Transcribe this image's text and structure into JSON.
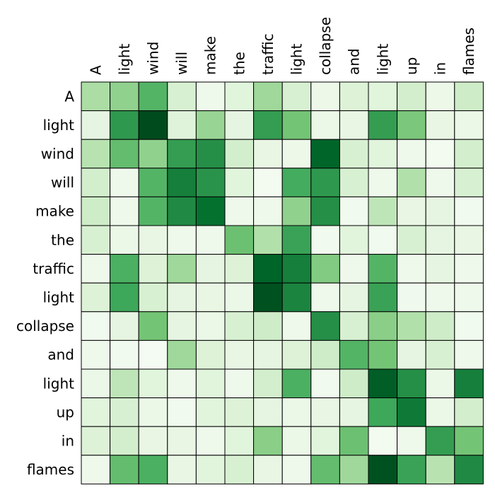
{
  "chart_data": {
    "type": "heatmap",
    "title": "",
    "xlabel": "",
    "ylabel": "",
    "x_categories": [
      "A",
      "light",
      "wind",
      "will",
      "make",
      "the",
      "traffic",
      "light",
      "collapse",
      "and",
      "light",
      "up",
      "in",
      "flames"
    ],
    "y_categories": [
      "A",
      "light",
      "wind",
      "will",
      "make",
      "the",
      "traffic",
      "light",
      "collapse",
      "and",
      "light",
      "up",
      "in",
      "flames"
    ],
    "colormap": "Greens",
    "color_range": [
      0,
      1
    ],
    "colorbar": false,
    "grid": true,
    "values": [
      [
        0.34,
        0.42,
        0.58,
        0.18,
        0.06,
        0.14,
        0.38,
        0.18,
        0.07,
        0.16,
        0.14,
        0.2,
        0.07,
        0.22
      ],
      [
        0.12,
        0.7,
        0.98,
        0.15,
        0.4,
        0.12,
        0.68,
        0.5,
        0.08,
        0.1,
        0.68,
        0.48,
        0.1,
        0.08
      ],
      [
        0.3,
        0.54,
        0.42,
        0.68,
        0.74,
        0.2,
        0.1,
        0.07,
        0.9,
        0.18,
        0.14,
        0.06,
        0.03,
        0.2
      ],
      [
        0.2,
        0.06,
        0.58,
        0.8,
        0.72,
        0.14,
        0.03,
        0.62,
        0.7,
        0.18,
        0.06,
        0.32,
        0.06,
        0.18
      ],
      [
        0.22,
        0.06,
        0.58,
        0.76,
        0.86,
        0.06,
        0.06,
        0.42,
        0.74,
        0.04,
        0.28,
        0.1,
        0.12,
        0.04
      ],
      [
        0.18,
        0.08,
        0.1,
        0.06,
        0.06,
        0.52,
        0.32,
        0.66,
        0.04,
        0.14,
        0.04,
        0.18,
        0.12,
        0.1
      ],
      [
        0.06,
        0.6,
        0.16,
        0.38,
        0.12,
        0.16,
        0.9,
        0.8,
        0.46,
        0.06,
        0.58,
        0.06,
        0.12,
        0.06
      ],
      [
        0.16,
        0.64,
        0.18,
        0.12,
        0.1,
        0.08,
        0.96,
        0.78,
        0.06,
        0.12,
        0.66,
        0.05,
        0.06,
        0.06
      ],
      [
        0.04,
        0.12,
        0.5,
        0.12,
        0.08,
        0.18,
        0.22,
        0.06,
        0.74,
        0.18,
        0.44,
        0.32,
        0.22,
        0.04
      ],
      [
        0.06,
        0.04,
        0.02,
        0.38,
        0.16,
        0.1,
        0.12,
        0.16,
        0.22,
        0.58,
        0.5,
        0.12,
        0.18,
        0.06
      ],
      [
        0.08,
        0.28,
        0.14,
        0.06,
        0.14,
        0.06,
        0.2,
        0.6,
        0.04,
        0.22,
        0.92,
        0.74,
        0.08,
        0.8
      ],
      [
        0.14,
        0.18,
        0.08,
        0.04,
        0.14,
        0.16,
        0.12,
        0.08,
        0.1,
        0.12,
        0.64,
        0.82,
        0.08,
        0.2
      ],
      [
        0.16,
        0.2,
        0.1,
        0.1,
        0.06,
        0.14,
        0.44,
        0.08,
        0.14,
        0.52,
        0.03,
        0.06,
        0.68,
        0.5
      ],
      [
        0.06,
        0.54,
        0.6,
        0.1,
        0.14,
        0.18,
        0.1,
        0.06,
        0.54,
        0.38,
        0.96,
        0.66,
        0.3,
        0.76
      ]
    ]
  }
}
